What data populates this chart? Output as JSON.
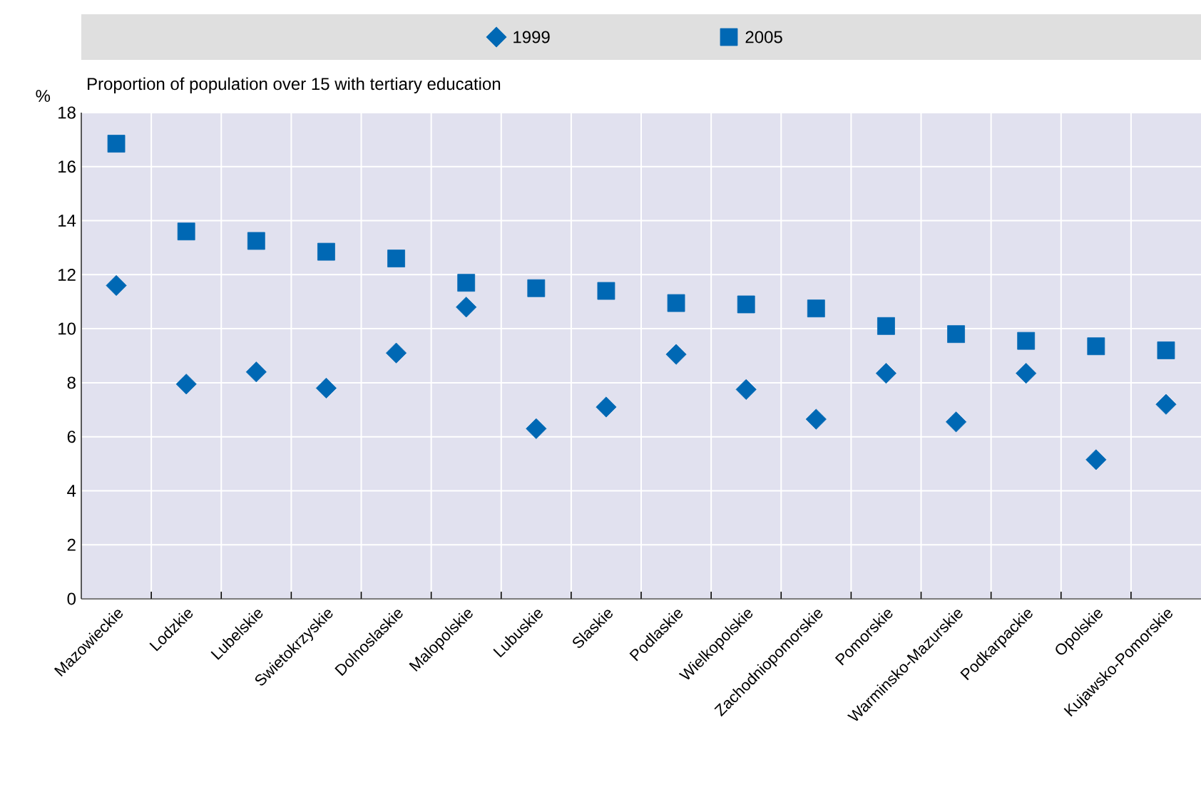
{
  "chart_data": {
    "type": "scatter",
    "title": "Proportion of population over 15 with tertiary education",
    "ylabel": "%",
    "categories": [
      "Mazowieckie",
      "Lodzkie",
      "Lubelskie",
      "Swietokrzyskie",
      "Dolnoslaskie",
      "Malopolskie",
      "Lubuskie",
      "Slaskie",
      "Podlaskie",
      "Wielkopolskie",
      "Zachodniopomorskie",
      "Pomorskie",
      "Warminsko-Mazurskie",
      "Podkarpackie",
      "Opolskie",
      "Kujawsko-Pomorskie"
    ],
    "series": [
      {
        "name": "1999",
        "color": "#0068b4",
        "marker": "diamond",
        "values": [
          11.6,
          7.95,
          8.4,
          7.8,
          9.1,
          10.8,
          6.3,
          7.1,
          9.05,
          7.75,
          6.65,
          8.35,
          6.55,
          8.35,
          5.15,
          7.2
        ]
      },
      {
        "name": "2005",
        "color": "#0068b4",
        "marker": "square",
        "values": [
          16.85,
          13.6,
          13.25,
          12.85,
          12.6,
          11.7,
          11.5,
          11.4,
          10.95,
          10.9,
          10.75,
          10.1,
          9.8,
          9.55,
          9.35,
          9.2
        ]
      }
    ],
    "ylim": [
      0,
      18
    ],
    "yticks": [
      0,
      2,
      4,
      6,
      8,
      10,
      12,
      14,
      16,
      18
    ],
    "grid": true,
    "legend": "top"
  }
}
